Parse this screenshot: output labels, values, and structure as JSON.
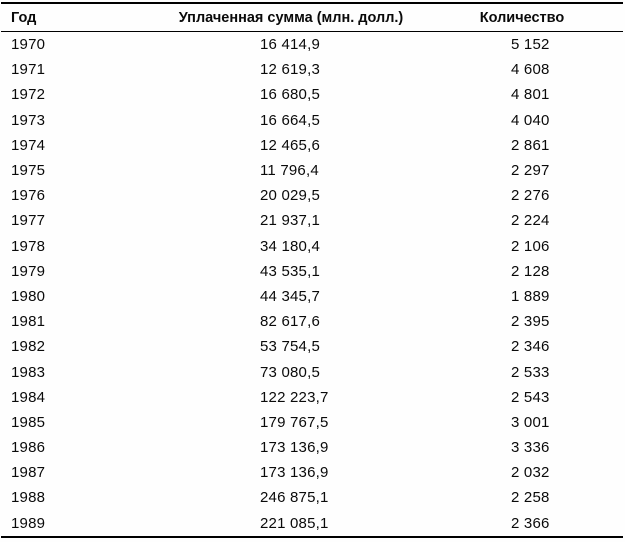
{
  "colors": {
    "background": "#fefefe",
    "text": "#0a0a0a",
    "border": "#000000"
  },
  "table": {
    "columns": [
      {
        "key": "year",
        "label": "Год"
      },
      {
        "key": "paid_sum",
        "label": "Уплаченная сумма (млн. долл.)"
      },
      {
        "key": "count",
        "label": "Количество"
      }
    ],
    "rows": [
      {
        "year": "1970",
        "paid_sum": "16 414,9",
        "count": "5 152"
      },
      {
        "year": "1971",
        "paid_sum": "12 619,3",
        "count": "4 608"
      },
      {
        "year": "1972",
        "paid_sum": "16 680,5",
        "count": "4 801"
      },
      {
        "year": "1973",
        "paid_sum": "16 664,5",
        "count": "4 040"
      },
      {
        "year": "1974",
        "paid_sum": "12 465,6",
        "count": "2 861"
      },
      {
        "year": "1975",
        "paid_sum": "11 796,4",
        "count": "2 297"
      },
      {
        "year": "1976",
        "paid_sum": "20 029,5",
        "count": "2 276"
      },
      {
        "year": "1977",
        "paid_sum": "21 937,1",
        "count": "2 224"
      },
      {
        "year": "1978",
        "paid_sum": "34 180,4",
        "count": "2 106"
      },
      {
        "year": "1979",
        "paid_sum": "43 535,1",
        "count": "2 128"
      },
      {
        "year": "1980",
        "paid_sum": "44 345,7",
        "count": "1 889"
      },
      {
        "year": "1981",
        "paid_sum": "82 617,6",
        "count": "2 395"
      },
      {
        "year": "1982",
        "paid_sum": "53 754,5",
        "count": "2 346"
      },
      {
        "year": "1983",
        "paid_sum": "73 080,5",
        "count": "2 533"
      },
      {
        "year": "1984",
        "paid_sum": "122 223,7",
        "count": "2 543"
      },
      {
        "year": "1985",
        "paid_sum": "179 767,5",
        "count": "3 001"
      },
      {
        "year": "1986",
        "paid_sum": "173 136,9",
        "count": "3 336"
      },
      {
        "year": "1987",
        "paid_sum": "173 136,9",
        "count": "2 032"
      },
      {
        "year": "1988",
        "paid_sum": "246 875,1",
        "count": "2 258"
      },
      {
        "year": "1989",
        "paid_sum": "221 085,1",
        "count": "2 366"
      }
    ]
  },
  "chart_data": {
    "type": "table",
    "title": "",
    "columns": [
      "Год",
      "Уплаченная сумма (млн. долл.)",
      "Количество"
    ],
    "years": [
      1970,
      1971,
      1972,
      1973,
      1974,
      1975,
      1976,
      1977,
      1978,
      1979,
      1980,
      1981,
      1982,
      1983,
      1984,
      1985,
      1986,
      1987,
      1988,
      1989
    ],
    "paid_sum_mln_usd": [
      16414.9,
      12619.3,
      16680.5,
      16664.5,
      12465.6,
      11796.4,
      20029.5,
      21937.1,
      34180.4,
      43535.1,
      44345.7,
      82617.6,
      53754.5,
      73080.5,
      122223.7,
      179767.5,
      173136.9,
      173136.9,
      246875.1,
      221085.1
    ],
    "count": [
      5152,
      4608,
      4801,
      4040,
      2861,
      2297,
      2276,
      2224,
      2106,
      2128,
      1889,
      2395,
      2346,
      2533,
      2543,
      3001,
      3336,
      2032,
      2258,
      2366
    ]
  }
}
